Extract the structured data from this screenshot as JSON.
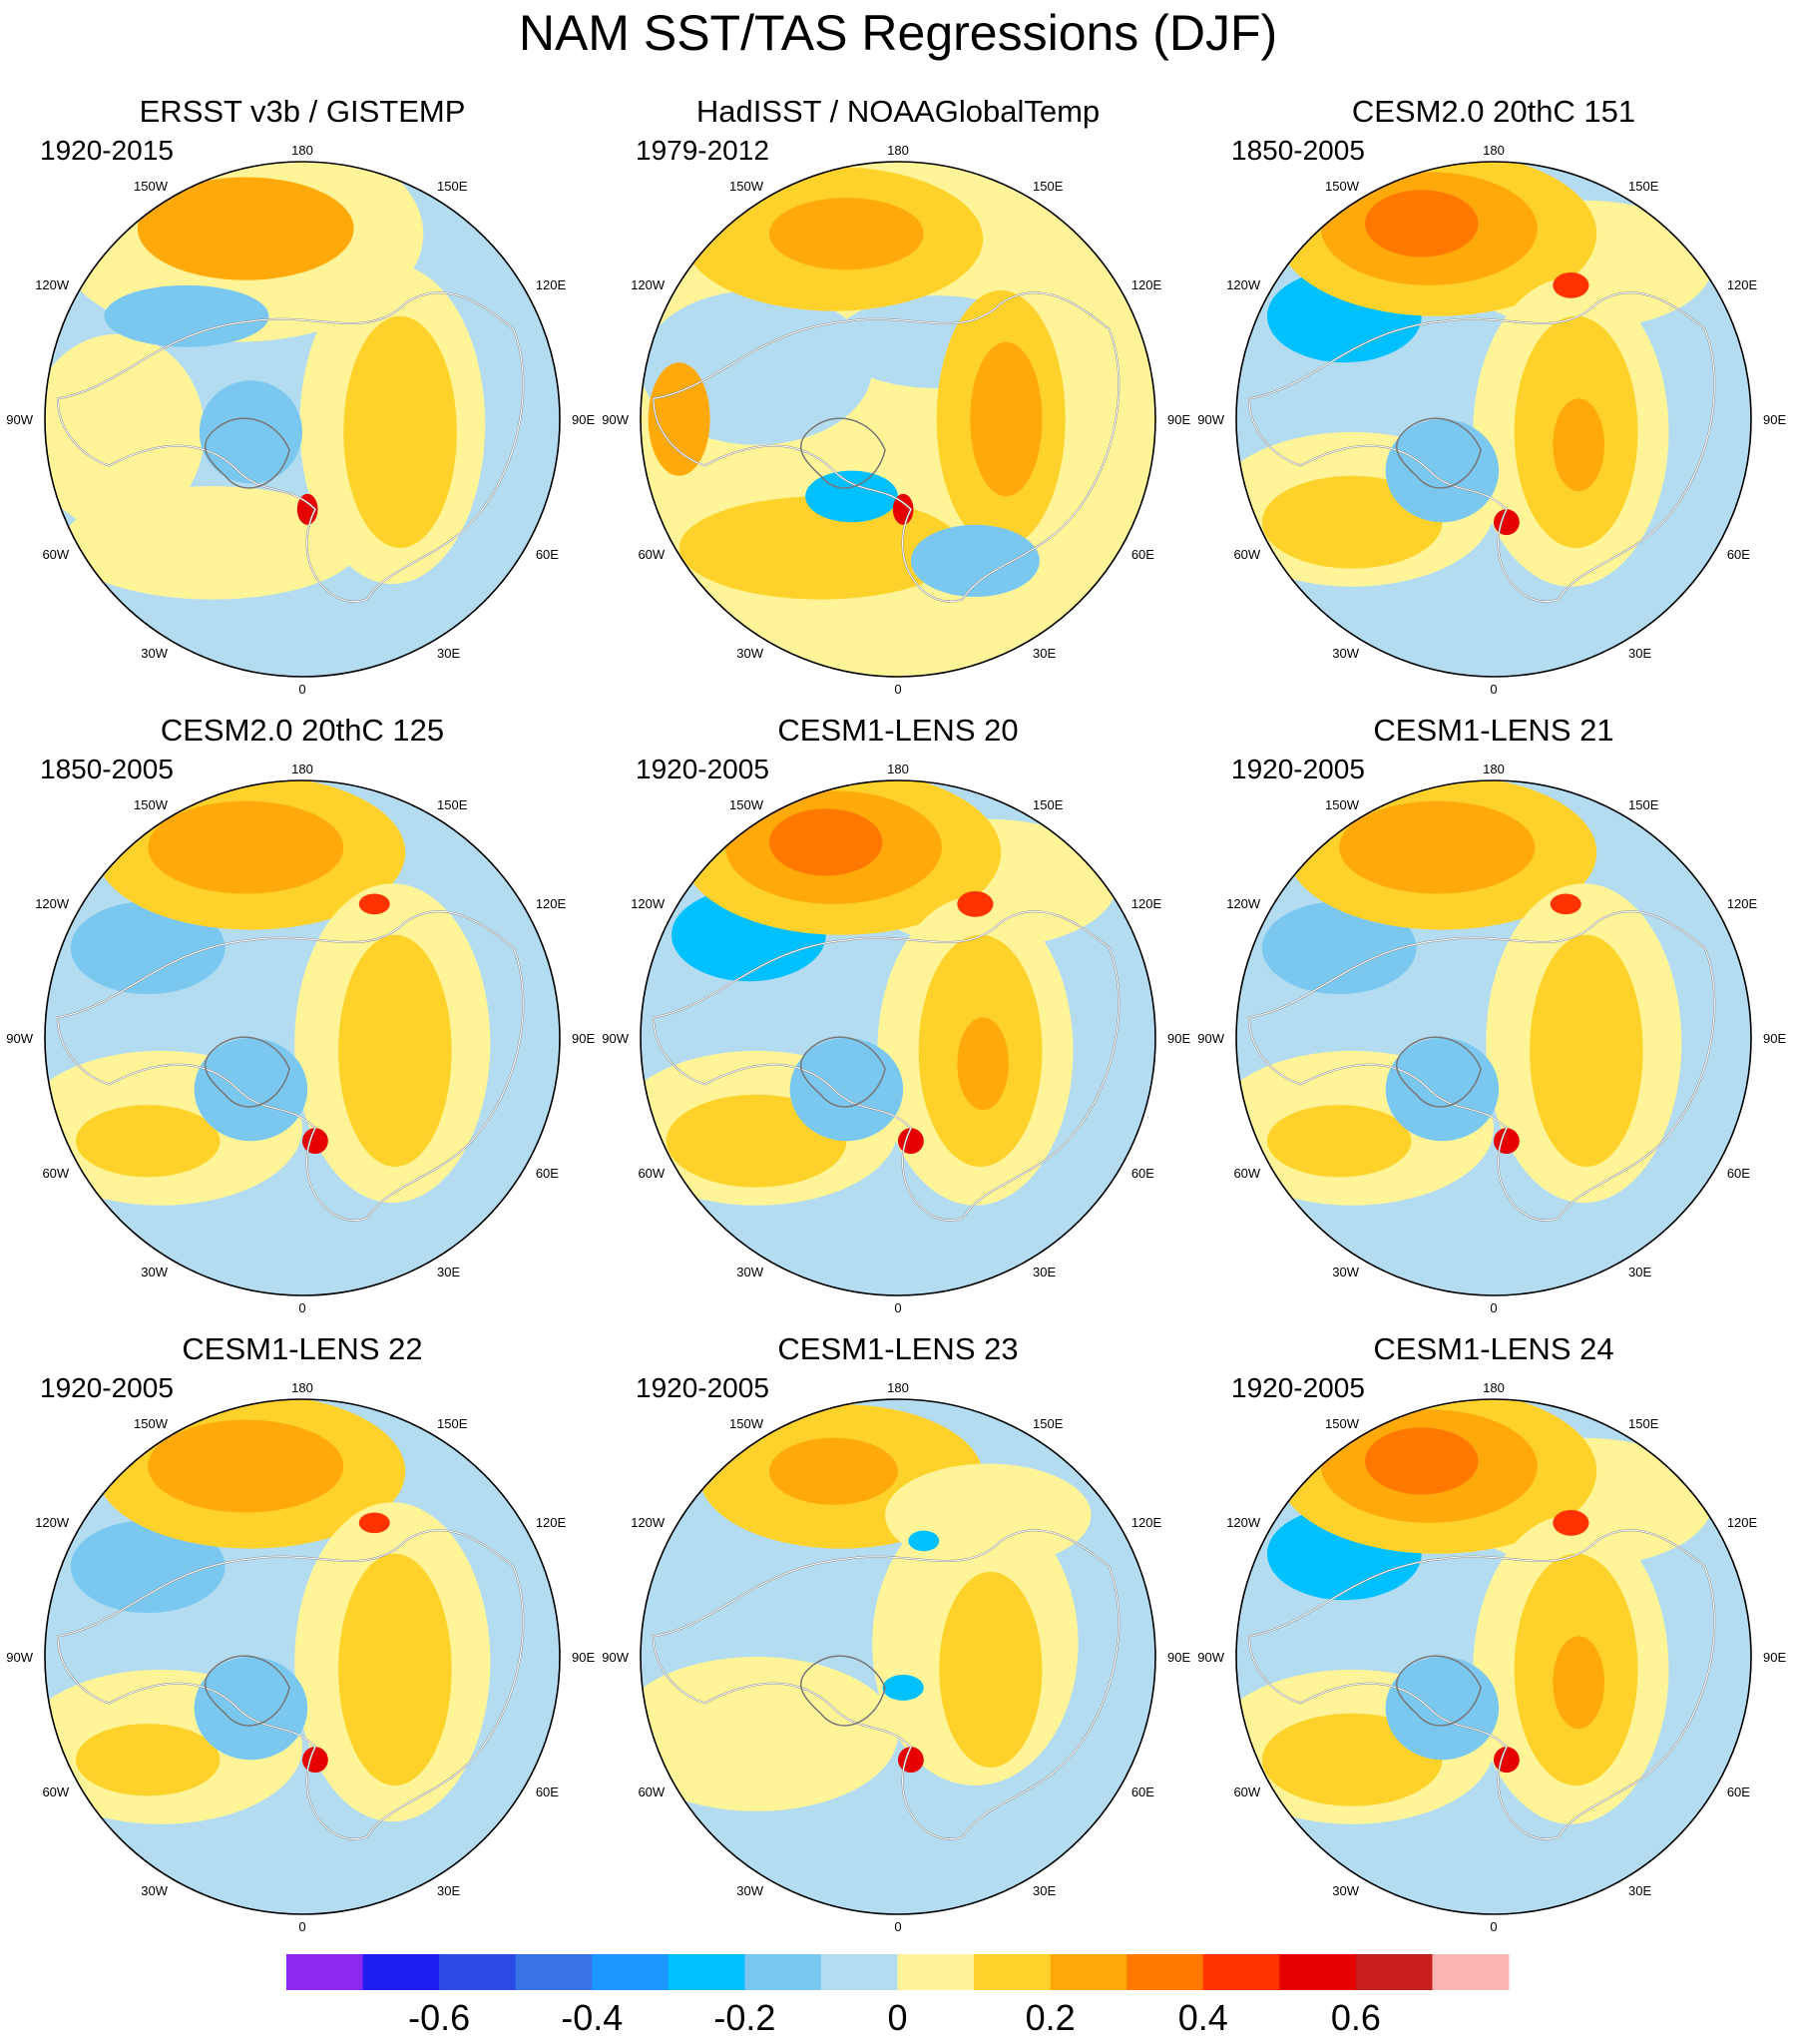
{
  "title": "NAM SST/TAS Regressions (DJF)",
  "panels": [
    {
      "title": "ERSST v3b / GISTEMP",
      "years": "1920-2015",
      "pattern": "obs1"
    },
    {
      "title": "HadISST / NOAAGlobalTemp",
      "years": "1979-2012",
      "pattern": "obs2"
    },
    {
      "title": "CESM2.0 20thC 151",
      "years": "1850-2005",
      "pattern": "strong"
    },
    {
      "title": "CESM2.0 20thC 125",
      "years": "1850-2005",
      "pattern": "model"
    },
    {
      "title": "CESM1-LENS 20",
      "years": "1920-2005",
      "pattern": "strong"
    },
    {
      "title": "CESM1-LENS 21",
      "years": "1920-2005",
      "pattern": "model"
    },
    {
      "title": "CESM1-LENS 22",
      "years": "1920-2005",
      "pattern": "model"
    },
    {
      "title": "CESM1-LENS 23",
      "years": "1920-2005",
      "pattern": "weak"
    },
    {
      "title": "CESM1-LENS 24",
      "years": "1920-2005",
      "pattern": "strong"
    }
  ],
  "longitude_labels": [
    "180",
    "150E",
    "120E",
    "90E",
    "60E",
    "30E",
    "0",
    "30W",
    "60W",
    "90W",
    "120W",
    "150W"
  ],
  "colorbar": {
    "colors": [
      "#8c28f0",
      "#1e1ef0",
      "#2b4ae6",
      "#3772e6",
      "#1e96ff",
      "#00c0ff",
      "#7ac8f0",
      "#b4dcf0",
      "#fff598",
      "#ffd22b",
      "#ffaa0a",
      "#ff7800",
      "#ff3200",
      "#e60000",
      "#c81e1e",
      "#ffb4b4"
    ],
    "levels": [
      -0.7,
      -0.6,
      -0.5,
      -0.4,
      -0.3,
      -0.2,
      -0.1,
      0,
      0.1,
      0.2,
      0.3,
      0.4,
      0.5,
      0.6,
      0.7
    ],
    "tick_labels": [
      {
        "value": -0.6,
        "label": "-0.6"
      },
      {
        "value": -0.4,
        "label": "-0.4"
      },
      {
        "value": -0.2,
        "label": "-0.2"
      },
      {
        "value": 0,
        "label": "0"
      },
      {
        "value": 0.2,
        "label": "0.2"
      },
      {
        "value": 0.4,
        "label": "0.4"
      },
      {
        "value": 0.6,
        "label": "0.6"
      }
    ]
  }
}
